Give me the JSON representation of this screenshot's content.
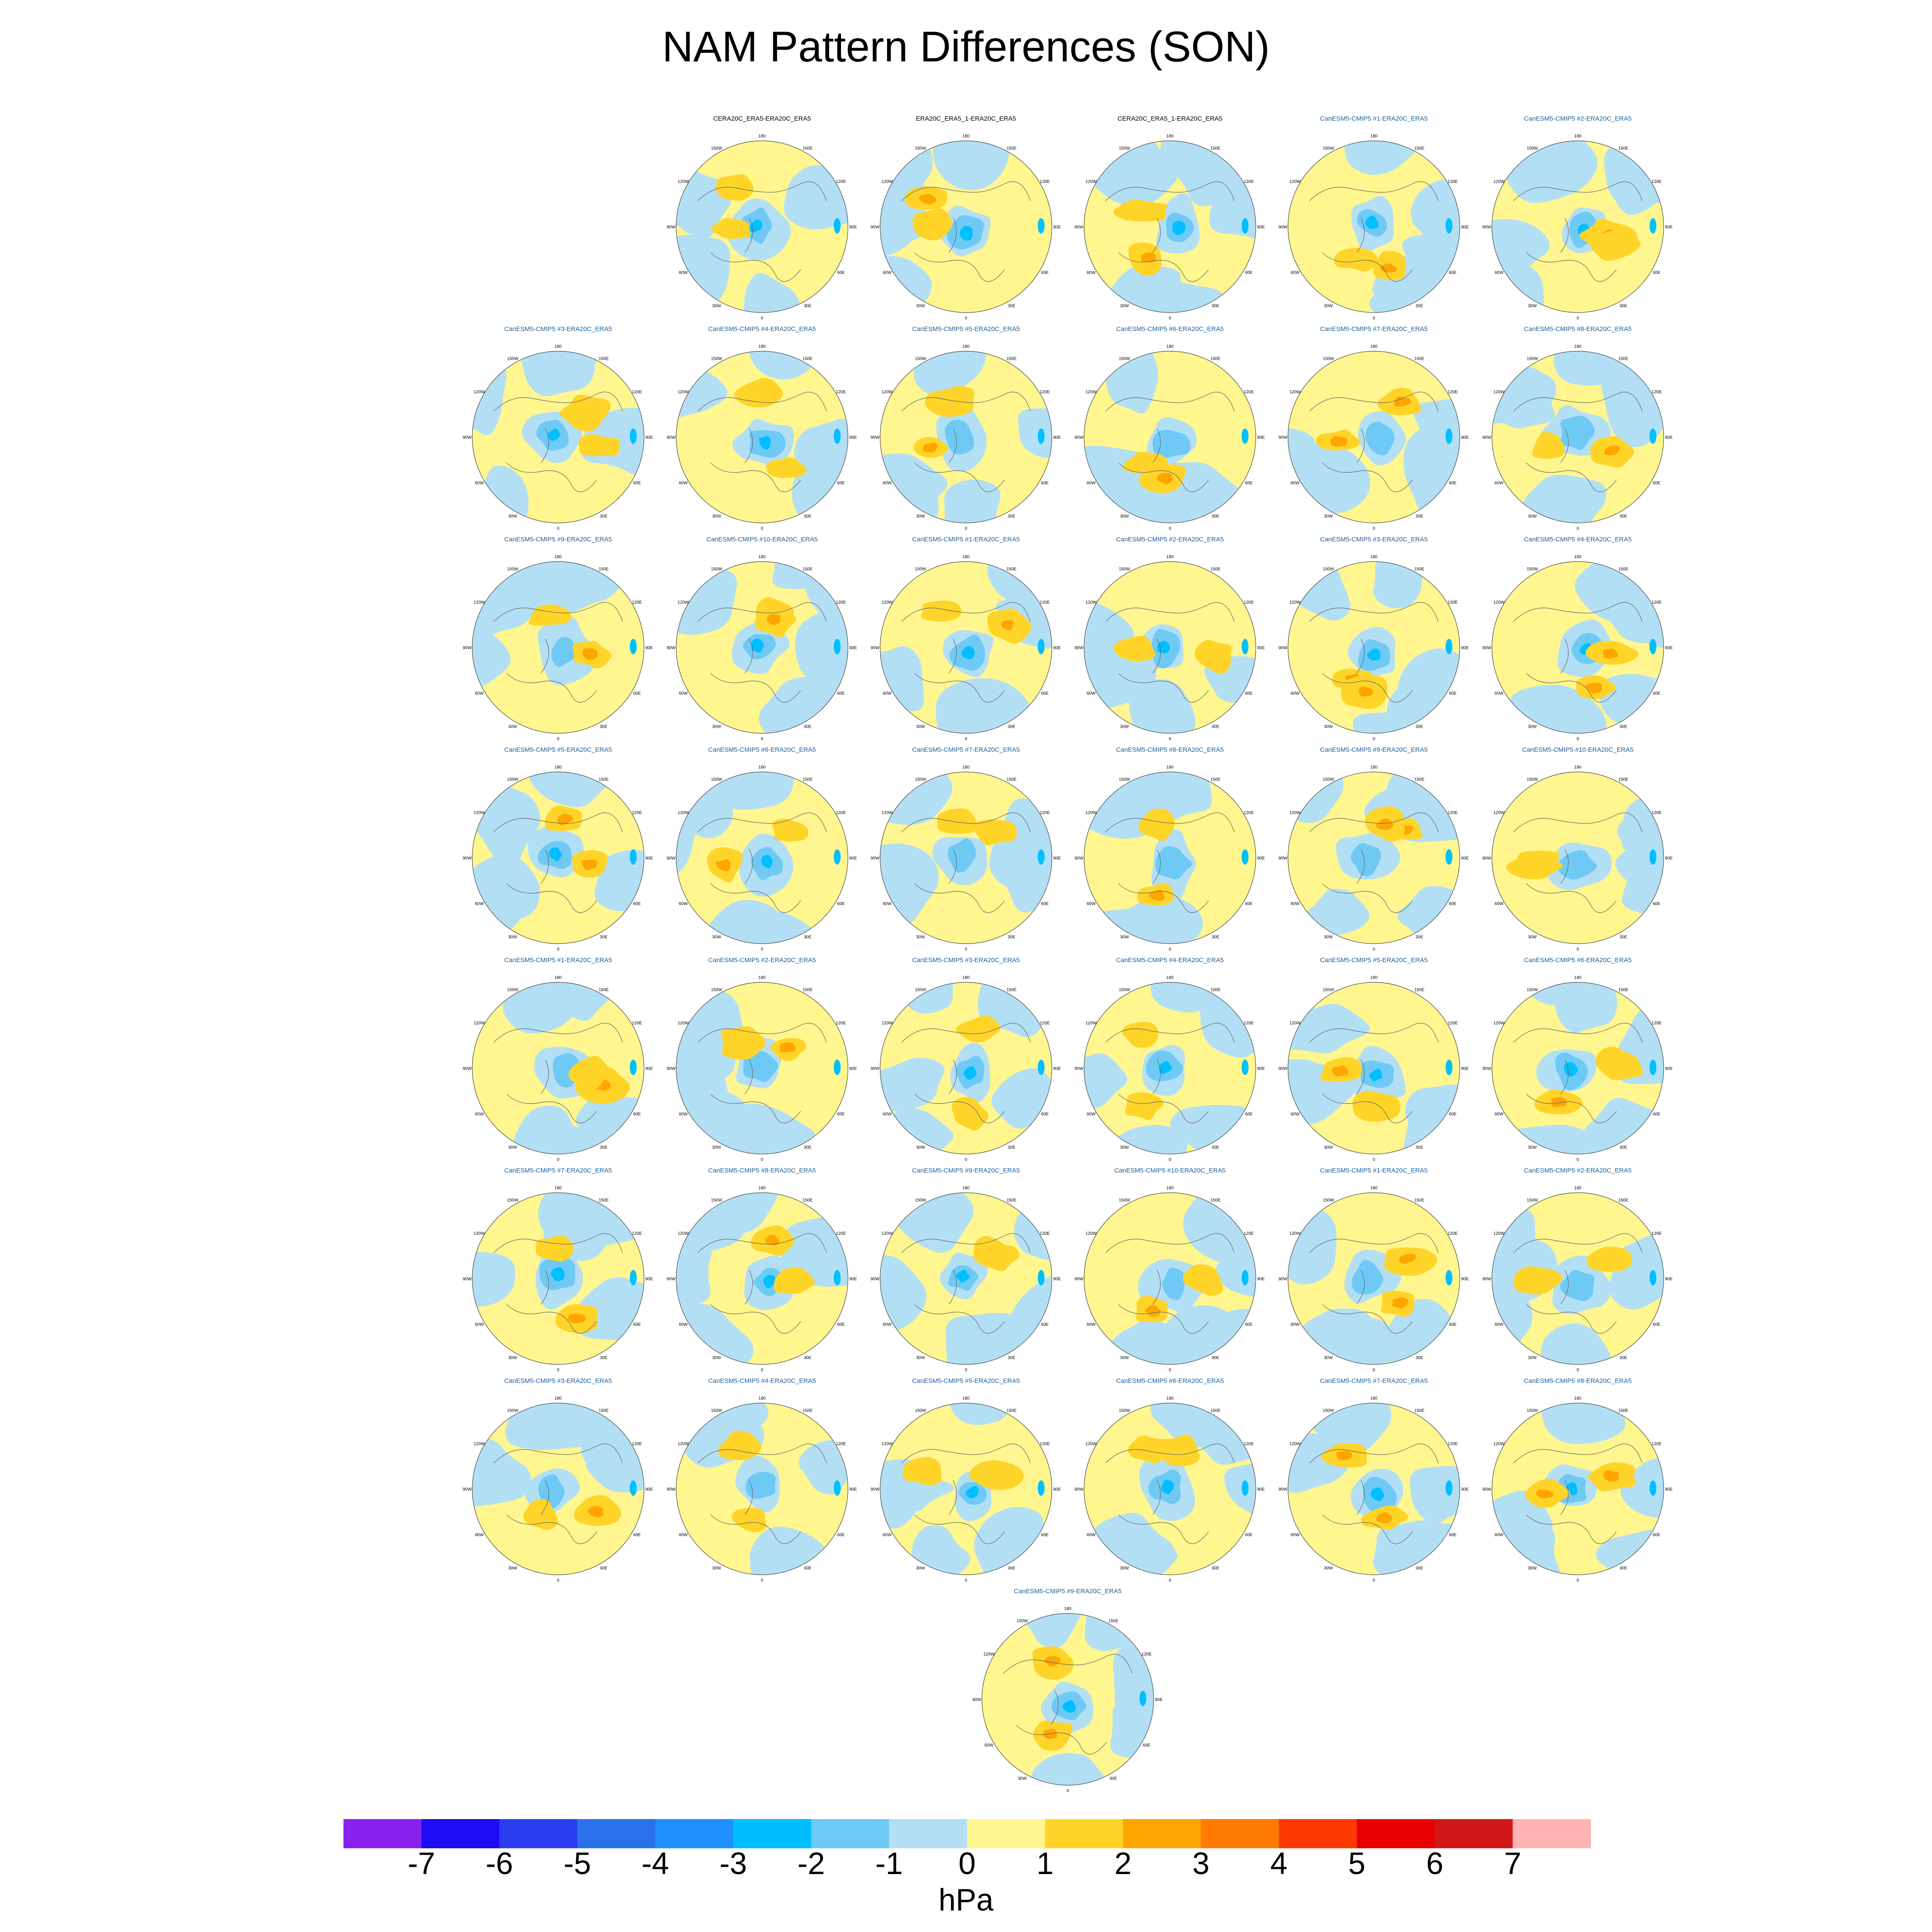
{
  "figure_title": "NAM Pattern Differences (SON)",
  "colorbar": {
    "units": "hPa",
    "tick_labels": [
      "-7",
      "-6",
      "-5",
      "-4",
      "-3",
      "-2",
      "-1",
      "0",
      "1",
      "2",
      "3",
      "4",
      "5",
      "6",
      "7"
    ],
    "colors": [
      "#8a22ee",
      "#1e0cf5",
      "#2a3ef0",
      "#2b72ea",
      "#1e90ff",
      "#00bfff",
      "#6ecaf5",
      "#b3dff5",
      "#fff68f",
      "#ffd429",
      "#ffa500",
      "#ff7a00",
      "#ff3a00",
      "#e80000",
      "#d01818",
      "#ffb3b3"
    ]
  },
  "map": {
    "lon_labels": [
      "180",
      "150E",
      "120E",
      "90E",
      "60E",
      "30E",
      "0",
      "30W",
      "60W",
      "90W",
      "120W",
      "150W"
    ]
  },
  "chart_data": {
    "type": "heatmap",
    "title": "NAM Pattern Differences (SON)",
    "projection": "polar stereographic, Northern Hemisphere",
    "units": "hPa",
    "colorbar_levels": [
      -7,
      -6,
      -5,
      -4,
      -3,
      -2,
      -1,
      0,
      1,
      2,
      3,
      4,
      5,
      6,
      7
    ],
    "panels": [
      {
        "title": "CERA20C_ERA5-ERA20C_ERA5",
        "title_color": "#000000"
      },
      {
        "title": "ERA20C_ERA5_1-ERA20C_ERA5",
        "title_color": "#000000"
      },
      {
        "title": "CERA20C_ERA5_1-ERA20C_ERA5",
        "title_color": "#000000"
      },
      {
        "title": "CanESM5-CMIP5 #1-ERA20C_ERA5",
        "title_color": "#1a5e9a"
      },
      {
        "title": "CanESM5-CMIP5 #2-ERA20C_ERA5",
        "title_color": "#1a5e9a"
      },
      {
        "title": "CanESM5-CMIP5 #3-ERA20C_ERA5",
        "title_color": "#1a5e9a"
      },
      {
        "title": "CanESM5-CMIP5 #4-ERA20C_ERA5",
        "title_color": "#1a5e9a"
      },
      {
        "title": "CanESM5-CMIP5 #5-ERA20C_ERA5",
        "title_color": "#1a5e9a"
      },
      {
        "title": "CanESM5-CMIP5 #6-ERA20C_ERA5",
        "title_color": "#1a5e9a"
      },
      {
        "title": "CanESM5-CMIP5 #7-ERA20C_ERA5",
        "title_color": "#1a5e9a"
      },
      {
        "title": "CanESM5-CMIP5 #8-ERA20C_ERA5",
        "title_color": "#1a5e9a"
      },
      {
        "title": "CanESM5-CMIP5 #9-ERA20C_ERA5",
        "title_color": "#1a5e9a"
      },
      {
        "title": "CanESM5-CMIP5 #10-ERA20C_ERA5",
        "title_color": "#1a5e9a"
      },
      {
        "title": "CanESM5-CMIP5 #1-ERA20C_ERA5",
        "title_color": "#1a5e9a"
      },
      {
        "title": "CanESM5-CMIP5 #2-ERA20C_ERA5",
        "title_color": "#1a5e9a"
      },
      {
        "title": "CanESM5-CMIP5 #3-ERA20C_ERA5",
        "title_color": "#1a5e9a"
      },
      {
        "title": "CanESM5-CMIP5 #4-ERA20C_ERA5",
        "title_color": "#1a5e9a"
      },
      {
        "title": "CanESM5-CMIP5 #5-ERA20C_ERA5",
        "title_color": "#1a5e9a"
      },
      {
        "title": "CanESM5-CMIP5 #6-ERA20C_ERA5",
        "title_color": "#1a5e9a"
      },
      {
        "title": "CanESM5-CMIP5 #7-ERA20C_ERA5",
        "title_color": "#1a5e9a"
      },
      {
        "title": "CanESM5-CMIP5 #8-ERA20C_ERA5",
        "title_color": "#1a5e9a"
      },
      {
        "title": "CanESM5-CMIP5 #9-ERA20C_ERA5",
        "title_color": "#1a5e9a"
      },
      {
        "title": "CanESM5-CMIP5 #10-ERA20C_ERA5",
        "title_color": "#1a5e9a"
      },
      {
        "title": "CanESM5-CMIP5 #1-ERA20C_ERA5",
        "title_color": "#1a5e9a"
      },
      {
        "title": "CanESM5-CMIP5 #2-ERA20C_ERA5",
        "title_color": "#1a5e9a"
      },
      {
        "title": "CanESM5-CMIP5 #3-ERA20C_ERA5",
        "title_color": "#1a5e9a"
      },
      {
        "title": "CanESM5-CMIP5 #4-ERA20C_ERA5",
        "title_color": "#1a5e9a"
      },
      {
        "title": "CanESM5-CMIP5 #5-ERA20C_ERA5",
        "title_color": "#1a5e9a"
      },
      {
        "title": "CanESM5-CMIP5 #6-ERA20C_ERA5",
        "title_color": "#1a5e9a"
      },
      {
        "title": "CanESM5-CMIP5 #7-ERA20C_ERA5",
        "title_color": "#1a5e9a"
      },
      {
        "title": "CanESM5-CMIP5 #8-ERA20C_ERA5",
        "title_color": "#1a5e9a"
      },
      {
        "title": "CanESM5-CMIP5 #9-ERA20C_ERA5",
        "title_color": "#1a5e9a"
      },
      {
        "title": "CanESM5-CMIP5 #10-ERA20C_ERA5",
        "title_color": "#1a5e9a"
      },
      {
        "title": "CanESM5-CMIP5 #1-ERA20C_ERA5",
        "title_color": "#1a5e9a"
      },
      {
        "title": "CanESM5-CMIP5 #2-ERA20C_ERA5",
        "title_color": "#1a5e9a"
      },
      {
        "title": "CanESM5-CMIP5 #3-ERA20C_ERA5",
        "title_color": "#1a5e9a"
      },
      {
        "title": "CanESM5-CMIP5 #4-ERA20C_ERA5",
        "title_color": "#1a5e9a"
      },
      {
        "title": "CanESM5-CMIP5 #5-ERA20C_ERA5",
        "title_color": "#1a5e9a"
      },
      {
        "title": "CanESM5-CMIP5 #6-ERA20C_ERA5",
        "title_color": "#1a5e9a"
      },
      {
        "title": "CanESM5-CMIP5 #7-ERA20C_ERA5",
        "title_color": "#1a5e9a"
      },
      {
        "title": "CanESM5-CMIP5 #8-ERA20C_ERA5",
        "title_color": "#1a5e9a"
      },
      {
        "title": "CanESM5-CMIP5 #9-ERA20C_ERA5",
        "title_color": "#1a5e9a"
      }
    ]
  }
}
